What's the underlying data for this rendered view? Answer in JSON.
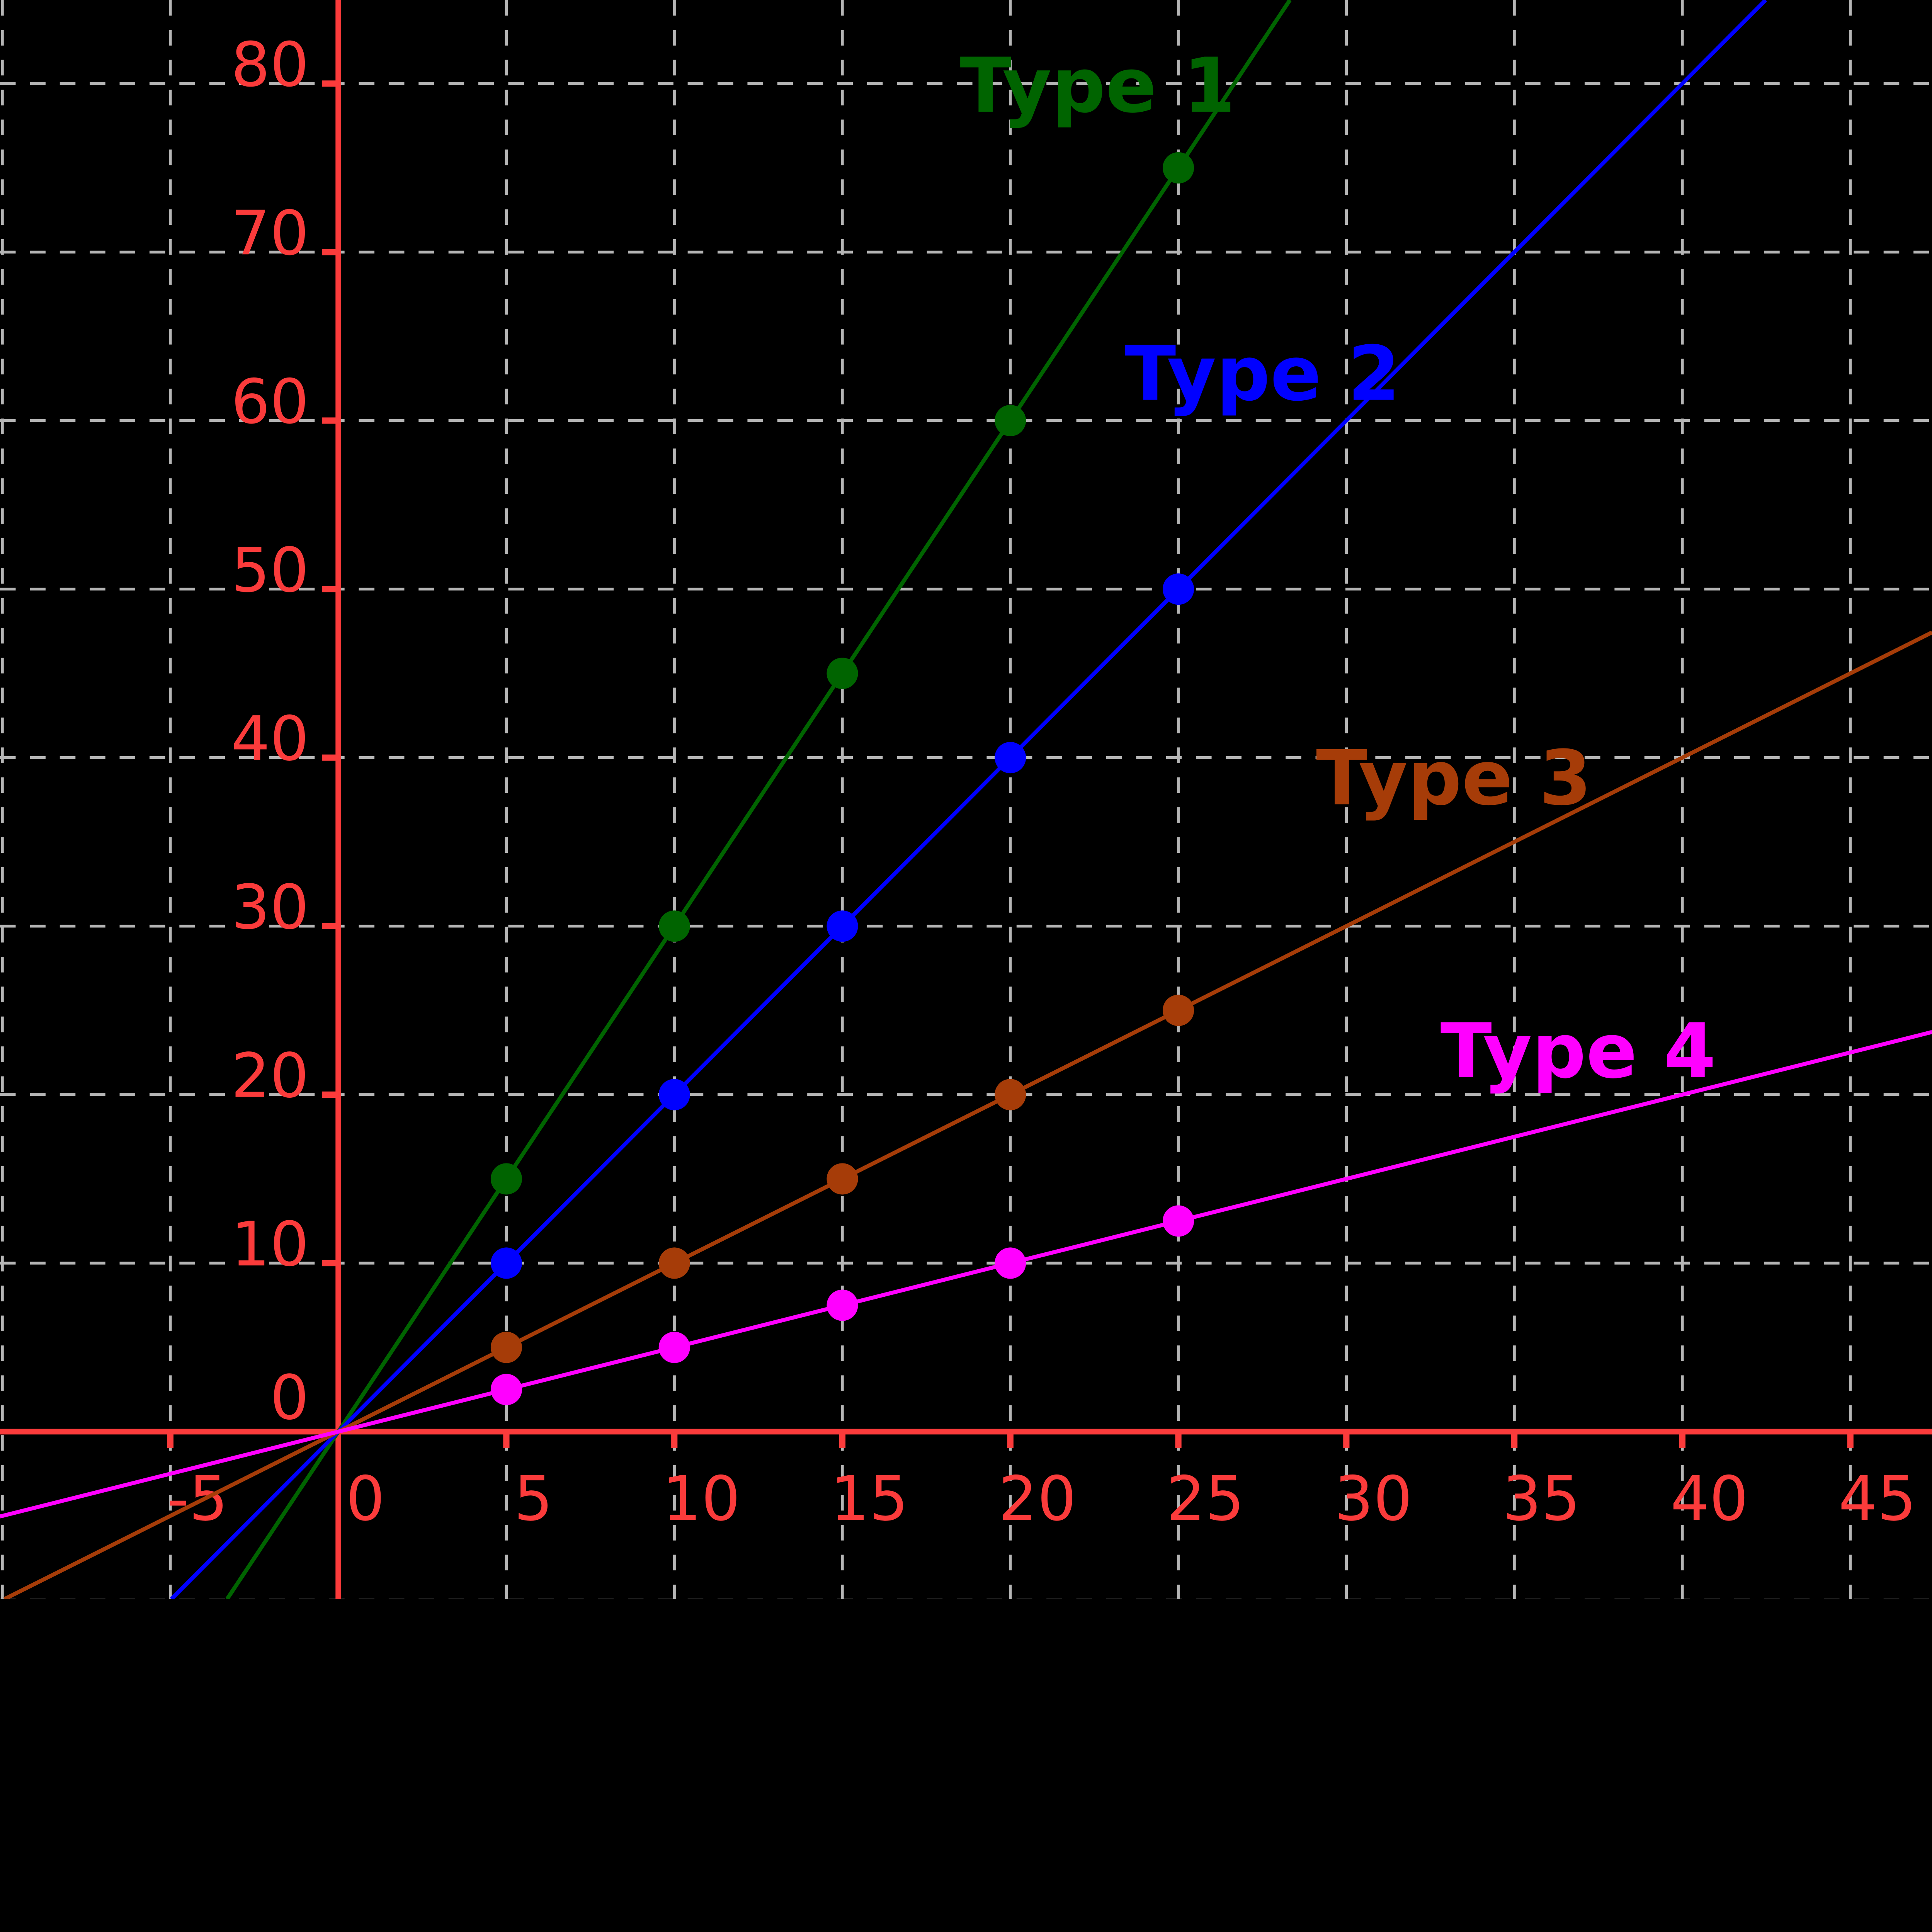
{
  "chart_data": {
    "type": "line",
    "title": "",
    "xlabel": "",
    "ylabel": "",
    "background_color": "#000000",
    "axis_color": "#fb3b3b",
    "grid_color": "#b5b5b5",
    "grid": true,
    "axes": {
      "x": {
        "min": -10.07,
        "max": 47.43,
        "tick_step": 5,
        "labeled_ticks": [
          -5,
          0,
          5,
          10,
          15,
          20,
          25,
          30,
          35,
          40,
          45
        ],
        "gridlines": [
          -10,
          -5,
          5,
          10,
          15,
          20,
          25,
          30,
          35,
          40,
          45
        ],
        "tick_marks": [
          -5,
          5,
          10,
          15,
          20,
          25,
          30,
          35,
          40,
          45
        ]
      },
      "y": {
        "min": -9.94,
        "max": 84.96,
        "tick_step": 10,
        "labeled_ticks": [
          0,
          10,
          20,
          30,
          40,
          50,
          60,
          70,
          80
        ],
        "gridlines": [
          -10,
          10,
          20,
          30,
          40,
          50,
          60,
          70,
          80
        ],
        "tick_marks": [
          10,
          20,
          30,
          40,
          50,
          60,
          70,
          80
        ]
      }
    },
    "series": [
      {
        "name": "Type 1",
        "color": "#006400",
        "slope": 3,
        "intercept": 0,
        "points": [
          [
            5,
            15
          ],
          [
            10,
            30
          ],
          [
            15,
            45
          ],
          [
            20,
            60
          ],
          [
            25,
            75
          ]
        ],
        "label_anchor": {
          "x": 22.6,
          "y": 79.9
        }
      },
      {
        "name": "Type 2",
        "color": "#0000ff",
        "slope": 2,
        "intercept": 0,
        "points": [
          [
            5,
            10
          ],
          [
            10,
            20
          ],
          [
            15,
            30
          ],
          [
            20,
            40
          ],
          [
            25,
            50
          ]
        ],
        "label_anchor": {
          "x": 27.5,
          "y": 62.8
        }
      },
      {
        "name": "Type 3",
        "color": "#a63c08",
        "slope": 1,
        "intercept": 0,
        "points": [
          [
            5,
            5
          ],
          [
            10,
            10
          ],
          [
            15,
            15
          ],
          [
            20,
            20
          ],
          [
            25,
            25
          ]
        ],
        "label_anchor": {
          "x": 33.2,
          "y": 38.8
        }
      },
      {
        "name": "Type 4",
        "color": "#ff00ff",
        "slope": 0.5,
        "intercept": 0,
        "points": [
          [
            5,
            2.5
          ],
          [
            10,
            5
          ],
          [
            15,
            7.5
          ],
          [
            20,
            10
          ],
          [
            25,
            12.5
          ]
        ],
        "label_anchor": {
          "x": 36.9,
          "y": 22.6
        }
      }
    ],
    "legend_position": "inline-labels"
  }
}
